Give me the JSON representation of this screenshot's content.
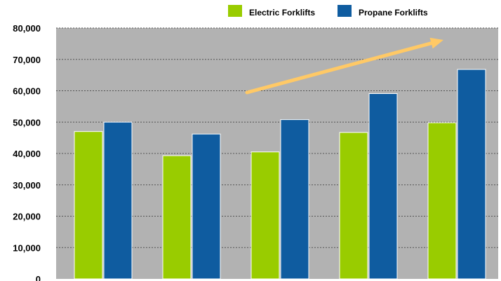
{
  "chart_data": {
    "type": "bar",
    "categories": [
      "",
      "",
      "",
      "",
      ""
    ],
    "series": [
      {
        "name": "Electric Forklifts",
        "values": [
          47000,
          39300,
          40500,
          46700,
          49800
        ]
      },
      {
        "name": "Propane Forklifts",
        "values": [
          50000,
          46200,
          50800,
          59100,
          66800
        ]
      }
    ],
    "ylim": [
      0,
      80000
    ],
    "yticks": [
      "0",
      "10,000",
      "20,000",
      "30,000",
      "40,000",
      "50,000",
      "60,000",
      "70,000",
      "80,000"
    ],
    "grid": true,
    "legend_position": "top-right",
    "annotations": [
      {
        "type": "trend-arrow",
        "direction": "up"
      }
    ],
    "colors": {
      "electric": "#99cc00",
      "propane": "#0f5ca0",
      "plot_background": "#b2b2b2",
      "gridline": "#555555",
      "arrow": "#ffc966"
    }
  }
}
